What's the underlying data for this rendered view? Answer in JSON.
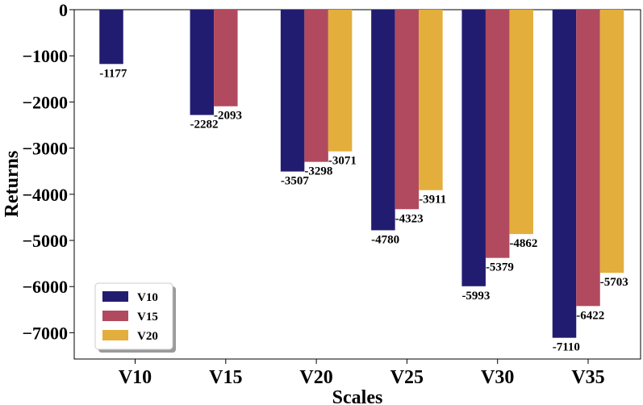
{
  "chart_data": {
    "type": "bar",
    "title": "",
    "xlabel": "Scales",
    "ylabel": "Returns",
    "categories": [
      "V10",
      "V15",
      "V20",
      "V25",
      "V30",
      "V35"
    ],
    "ylim": [
      -7500,
      0
    ],
    "yticks": [
      0,
      -1000,
      -2000,
      -3000,
      -4000,
      -5000,
      -6000,
      -7000
    ],
    "ytick_labels": [
      "0",
      "−1000",
      "−2000",
      "−3000",
      "−4000",
      "−5000",
      "−6000",
      "−7000"
    ],
    "grid": false,
    "legend_position": "bottom-left",
    "series": [
      {
        "name": "V10",
        "color": "#221C70",
        "values": [
          -1177,
          -2282,
          -3507,
          -4780,
          -5993,
          -7110
        ]
      },
      {
        "name": "V15",
        "color": "#B14A5F",
        "values": [
          null,
          -2093,
          -3298,
          -4323,
          -5379,
          -6422
        ]
      },
      {
        "name": "V20",
        "color": "#E3AE3C",
        "values": [
          null,
          null,
          -3071,
          -3911,
          -4862,
          -5703
        ]
      }
    ]
  }
}
